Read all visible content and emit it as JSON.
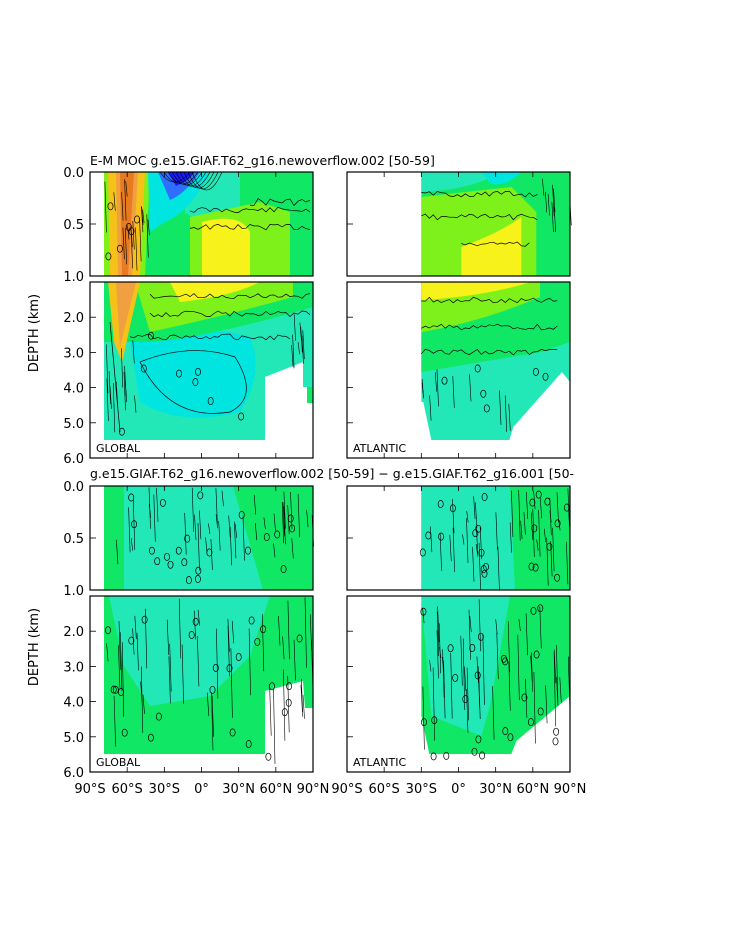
{
  "chart_data": {
    "type": "heatmap",
    "plot_type": "contour",
    "top_title": "E-M MOC   g.e15.GIAF.T62_g16.newoverflow.002  [50-59]",
    "bottom_title": "g.e15.GIAF.T62_g16.newoverflow.002  [50-59]  −  g.e15.GIAF.T62_g16.001  [50-",
    "ylabel": "DEPTH (km)",
    "panel_labels": [
      "GLOBAL",
      "ATLANTIC",
      "GLOBAL",
      "ATLANTIC"
    ],
    "x_ticks": [
      "90°S",
      "60°S",
      "30°S",
      "0°",
      "30°N",
      "60°N",
      "90°N"
    ],
    "x_range_deg": [
      -90,
      90
    ],
    "y_ticks_upper": [
      "0.0",
      "0.5",
      "1.0"
    ],
    "y_ticks_lower": [
      "2.0",
      "3.0",
      "4.0",
      "5.0",
      "6.0"
    ],
    "y_range_km": [
      0,
      6
    ],
    "depth_split_km": 1,
    "contour_label": "0",
    "atlantic_start_lat": -30,
    "colors": {
      "deep_blue": "#1a1aff",
      "blue": "#2f6fff",
      "cyan": "#00e5e0",
      "aqua": "#22e8b8",
      "green": "#10e865",
      "lime": "#7ef01a",
      "yellow": "#f6f21a",
      "gold": "#f5c21a",
      "orange": "#f0a040",
      "dark_orange": "#e87b20"
    }
  }
}
